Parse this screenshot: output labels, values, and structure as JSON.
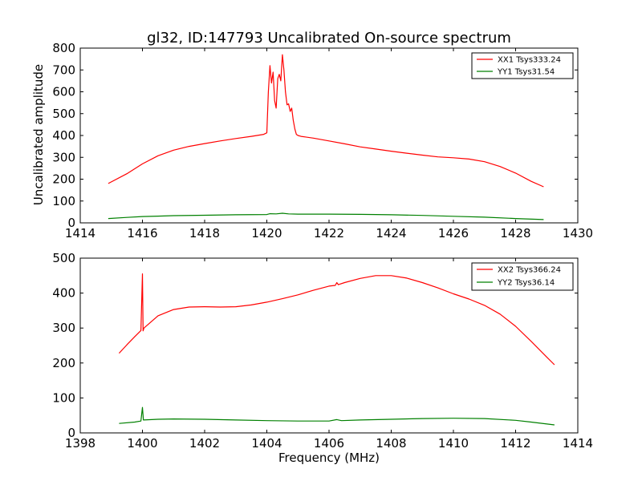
{
  "chart_data": [
    {
      "type": "line",
      "title": "gl32, ID:147793 Uncalibrated On-source spectrum",
      "xlabel": "",
      "ylabel": "Uncalibrated amplitude",
      "xlim": [
        1414,
        1430
      ],
      "ylim": [
        0,
        800
      ],
      "xticks": [
        1414,
        1416,
        1418,
        1420,
        1422,
        1424,
        1426,
        1428,
        1430
      ],
      "yticks": [
        0,
        100,
        200,
        300,
        400,
        500,
        600,
        700,
        800
      ],
      "legend_position": "top-right",
      "series": [
        {
          "name": "XX1 Tsys333.24",
          "color": "#ff0000",
          "x": [
            1414.9,
            1415.5,
            1416.0,
            1416.5,
            1417.0,
            1417.5,
            1418.0,
            1418.5,
            1419.0,
            1419.5,
            1419.9,
            1420.0,
            1420.05,
            1420.1,
            1420.15,
            1420.2,
            1420.25,
            1420.3,
            1420.35,
            1420.4,
            1420.45,
            1420.5,
            1420.55,
            1420.6,
            1420.65,
            1420.7,
            1420.75,
            1420.8,
            1420.85,
            1420.9,
            1420.95,
            1421.0,
            1421.1,
            1421.5,
            1422.0,
            1422.5,
            1423.0,
            1423.5,
            1424.0,
            1424.5,
            1425.0,
            1425.5,
            1426.0,
            1426.5,
            1427.0,
            1427.5,
            1428.0,
            1428.5,
            1428.9
          ],
          "y": [
            180,
            225,
            270,
            307,
            333,
            350,
            363,
            375,
            386,
            396,
            405,
            412,
            600,
            720,
            640,
            690,
            560,
            525,
            660,
            680,
            650,
            770,
            700,
            600,
            540,
            545,
            510,
            525,
            470,
            430,
            405,
            400,
            396,
            388,
            375,
            362,
            348,
            338,
            328,
            319,
            310,
            302,
            298,
            292,
            280,
            258,
            228,
            190,
            165
          ]
        },
        {
          "name": "YY1 Tsys31.54",
          "color": "#008000",
          "x": [
            1414.9,
            1415.5,
            1416.0,
            1416.5,
            1417.0,
            1418.0,
            1419.0,
            1420.0,
            1420.1,
            1420.3,
            1420.5,
            1420.7,
            1421.0,
            1422.0,
            1423.0,
            1424.0,
            1425.0,
            1426.0,
            1427.0,
            1428.0,
            1428.9
          ],
          "y": [
            20,
            25,
            29,
            31,
            33,
            35,
            37,
            38,
            42,
            41,
            44,
            41,
            40,
            40,
            39,
            37,
            34,
            30,
            26,
            20,
            15
          ]
        }
      ]
    },
    {
      "type": "line",
      "title": "",
      "xlabel": "Frequency (MHz)",
      "ylabel": "",
      "xlim": [
        1398,
        1414
      ],
      "ylim": [
        0,
        500
      ],
      "xticks": [
        1398,
        1400,
        1402,
        1404,
        1406,
        1408,
        1410,
        1412,
        1414
      ],
      "yticks": [
        0,
        100,
        200,
        300,
        400,
        500
      ],
      "legend_position": "top-right",
      "series": [
        {
          "name": "XX2 Tsys366.24",
          "color": "#ff0000",
          "x": [
            1399.25,
            1399.5,
            1399.75,
            1399.95,
            1400.0,
            1400.02,
            1400.05,
            1400.5,
            1401.0,
            1401.5,
            1402.0,
            1402.5,
            1403.0,
            1403.5,
            1404.0,
            1404.5,
            1405.0,
            1405.5,
            1406.0,
            1406.2,
            1406.25,
            1406.3,
            1406.5,
            1407.0,
            1407.5,
            1408.0,
            1408.5,
            1409.0,
            1409.5,
            1410.0,
            1410.5,
            1411.0,
            1411.5,
            1412.0,
            1412.5,
            1413.0,
            1413.25
          ],
          "y": [
            228,
            252,
            275,
            293,
            455,
            292,
            300,
            335,
            353,
            360,
            361,
            360,
            361,
            366,
            374,
            384,
            395,
            408,
            420,
            422,
            430,
            424,
            430,
            442,
            450,
            450,
            443,
            430,
            415,
            398,
            383,
            365,
            340,
            305,
            262,
            217,
            195
          ]
        },
        {
          "name": "YY2 Tsys36.14",
          "color": "#008000",
          "x": [
            1399.25,
            1399.75,
            1399.95,
            1400.0,
            1400.03,
            1400.5,
            1401.0,
            1402.0,
            1403.0,
            1404.0,
            1405.0,
            1406.0,
            1406.25,
            1406.4,
            1407.0,
            1408.0,
            1409.0,
            1410.0,
            1411.0,
            1412.0,
            1412.5,
            1413.25
          ],
          "y": [
            27,
            31,
            34,
            73,
            37,
            39,
            40,
            39,
            37,
            35,
            34,
            34,
            38,
            35,
            37,
            39,
            41,
            42,
            41,
            36,
            31,
            23
          ]
        }
      ]
    }
  ]
}
